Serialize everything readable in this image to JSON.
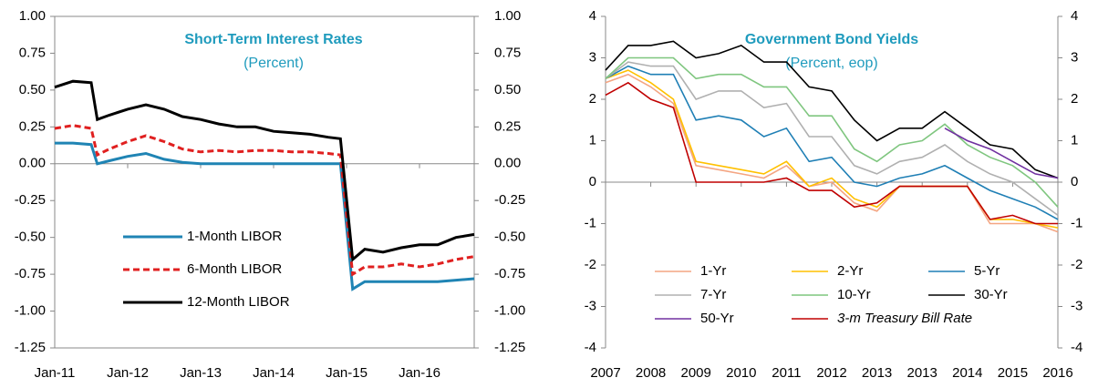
{
  "chart_data": [
    {
      "type": "line",
      "title": "Short-Term Interest Rates",
      "subtitle": "(Percent)",
      "x": [
        "2011-01",
        "2011-04",
        "2011-07",
        "2011-08",
        "2011-10",
        "2012-01",
        "2012-04",
        "2012-07",
        "2012-10",
        "2013-01",
        "2013-04",
        "2013-07",
        "2013-10",
        "2014-01",
        "2014-04",
        "2014-07",
        "2014-10",
        "2014-12",
        "2015-02",
        "2015-04",
        "2015-07",
        "2015-10",
        "2016-01",
        "2016-04",
        "2016-07",
        "2016-10"
      ],
      "xlim": [
        "2011-01",
        "2016-10"
      ],
      "xticks": [
        {
          "value": "2011-01",
          "label": "Jan-11"
        },
        {
          "value": "2012-01",
          "label": "Jan-12"
        },
        {
          "value": "2013-01",
          "label": "Jan-13"
        },
        {
          "value": "2014-01",
          "label": "Jan-14"
        },
        {
          "value": "2015-01",
          "label": "Jan-15"
        },
        {
          "value": "2016-01",
          "label": "Jan-16"
        }
      ],
      "ylim": [
        -1.25,
        1
      ],
      "yticks": [
        {
          "value": 1,
          "label": "1.00"
        },
        0.75,
        {
          "value": 0.5,
          "label": "0.50"
        },
        0.25,
        {
          "value": 0,
          "label": "0.00"
        },
        -0.25,
        {
          "value": -0.5,
          "label": "-0.50"
        },
        -0.75,
        {
          "value": -1,
          "label": "-1.00"
        },
        -1.25
      ],
      "y2lim": [
        -1.25,
        1
      ],
      "y2ticks": [
        {
          "value": 1,
          "label": "1.00"
        },
        0.75,
        {
          "value": 0.5,
          "label": "0.50"
        },
        0.25,
        {
          "value": 0,
          "label": "0.00"
        },
        -0.25,
        {
          "value": -0.5,
          "label": "-0.50"
        },
        -0.75,
        {
          "value": -1,
          "label": "-1.00"
        },
        -1.25
      ],
      "series": [
        {
          "name": "1-Month LIBOR",
          "color": "#1f84b4",
          "values": [
            0.14,
            0.14,
            0.13,
            0.0,
            0.02,
            0.05,
            0.07,
            0.03,
            0.01,
            0.0,
            0.0,
            0.0,
            0.0,
            0.0,
            0.0,
            0.0,
            0.0,
            0.0,
            -0.85,
            -0.8,
            -0.8,
            -0.8,
            -0.8,
            -0.8,
            -0.79,
            -0.78
          ]
        },
        {
          "name": "6-Month LIBOR",
          "color": "#e02020",
          "dash": true,
          "values": [
            0.24,
            0.26,
            0.24,
            0.06,
            0.1,
            0.15,
            0.19,
            0.15,
            0.1,
            0.08,
            0.09,
            0.08,
            0.09,
            0.09,
            0.08,
            0.08,
            0.07,
            0.06,
            -0.75,
            -0.7,
            -0.7,
            -0.68,
            -0.7,
            -0.68,
            -0.65,
            -0.63
          ]
        },
        {
          "name": "12-Month LIBOR",
          "color": "#000000",
          "values": [
            0.52,
            0.56,
            0.55,
            0.3,
            0.33,
            0.37,
            0.4,
            0.37,
            0.32,
            0.3,
            0.27,
            0.25,
            0.25,
            0.22,
            0.21,
            0.2,
            0.18,
            0.17,
            -0.65,
            -0.58,
            -0.6,
            -0.57,
            -0.55,
            -0.55,
            -0.5,
            -0.48
          ]
        }
      ]
    },
    {
      "type": "line",
      "title": "Government Bond Yields",
      "subtitle": "(Percent, eop)",
      "x": [
        2007,
        2007.5,
        2008,
        2008.5,
        2009,
        2009.5,
        2010,
        2010.5,
        2011,
        2011.5,
        2012,
        2012.5,
        2013,
        2013.5,
        2014,
        2014.5,
        2015,
        2015.5,
        2016,
        2016.5,
        2017
      ],
      "xlim": [
        2007,
        2017
      ],
      "xticks": [
        2007,
        2008,
        2009,
        2010,
        2011,
        2012,
        2013,
        {
          "value": 2014,
          "label": "2013"
        },
        {
          "value": 2015,
          "label": "2014"
        },
        {
          "value": 2016,
          "label": "2015"
        },
        {
          "value": 2017,
          "label": "2016"
        }
      ],
      "ylim": [
        -4,
        4
      ],
      "yticks": [
        4,
        3,
        2,
        1,
        0,
        -1,
        -2,
        -3,
        -4
      ],
      "y2lim": [
        -4,
        4
      ],
      "y2ticks": [
        4,
        3,
        2,
        1,
        0,
        -1,
        -2,
        -3,
        -4
      ],
      "series": [
        {
          "name": "1-Yr",
          "color": "#f4a582",
          "values": [
            2.4,
            2.6,
            2.3,
            1.9,
            0.4,
            0.3,
            0.2,
            0.1,
            0.4,
            -0.1,
            0.0,
            -0.5,
            -0.7,
            -0.1,
            -0.1,
            -0.1,
            -0.1,
            -1.0,
            -1.0,
            -1.0,
            -1.2
          ]
        },
        {
          "name": "2-Yr",
          "color": "#ffc000",
          "values": [
            2.5,
            2.7,
            2.4,
            2.0,
            0.5,
            0.4,
            0.3,
            0.2,
            0.5,
            -0.1,
            0.1,
            -0.4,
            -0.6,
            -0.1,
            -0.1,
            -0.1,
            -0.1,
            -0.9,
            -0.9,
            -1.0,
            -1.1
          ]
        },
        {
          "name": "5-Yr",
          "color": "#1f7fb5",
          "values": [
            2.5,
            2.8,
            2.6,
            2.6,
            1.5,
            1.6,
            1.5,
            1.1,
            1.3,
            0.5,
            0.6,
            0.0,
            -0.1,
            0.1,
            0.2,
            0.4,
            0.1,
            -0.2,
            -0.4,
            -0.6,
            -0.9
          ]
        },
        {
          "name": "7-Yr",
          "color": "#b0b0b0",
          "values": [
            2.5,
            2.9,
            2.8,
            2.8,
            2.0,
            2.2,
            2.2,
            1.8,
            1.9,
            1.1,
            1.1,
            0.4,
            0.2,
            0.5,
            0.6,
            0.9,
            0.5,
            0.2,
            0.0,
            -0.4,
            -0.8
          ]
        },
        {
          "name": "10-Yr",
          "color": "#7fc67f",
          "values": [
            2.5,
            3.0,
            3.0,
            3.0,
            2.5,
            2.6,
            2.6,
            2.3,
            2.3,
            1.6,
            1.6,
            0.8,
            0.5,
            0.9,
            1.0,
            1.4,
            0.9,
            0.6,
            0.4,
            0.0,
            -0.6
          ]
        },
        {
          "name": "30-Yr",
          "color": "#000000",
          "values": [
            2.7,
            3.3,
            3.3,
            3.4,
            3.0,
            3.1,
            3.3,
            2.9,
            2.9,
            2.3,
            2.2,
            1.5,
            1.0,
            1.3,
            1.3,
            1.7,
            1.3,
            0.9,
            0.8,
            0.3,
            0.1
          ]
        },
        {
          "name": "50-Yr",
          "color": "#7030a0",
          "values": [
            null,
            null,
            null,
            null,
            null,
            null,
            null,
            null,
            null,
            null,
            null,
            null,
            null,
            null,
            null,
            1.3,
            1.0,
            0.8,
            0.5,
            0.2,
            0.1
          ]
        },
        {
          "name": "3-m Treasury Bill Rate",
          "color": "#c00000",
          "italic": true,
          "values": [
            2.1,
            2.4,
            2.0,
            1.8,
            0.0,
            0.0,
            0.0,
            0.0,
            0.1,
            -0.2,
            -0.2,
            -0.6,
            -0.5,
            -0.1,
            -0.1,
            -0.1,
            -0.1,
            -0.9,
            -0.8,
            -1.0,
            -1.0
          ]
        }
      ]
    }
  ]
}
